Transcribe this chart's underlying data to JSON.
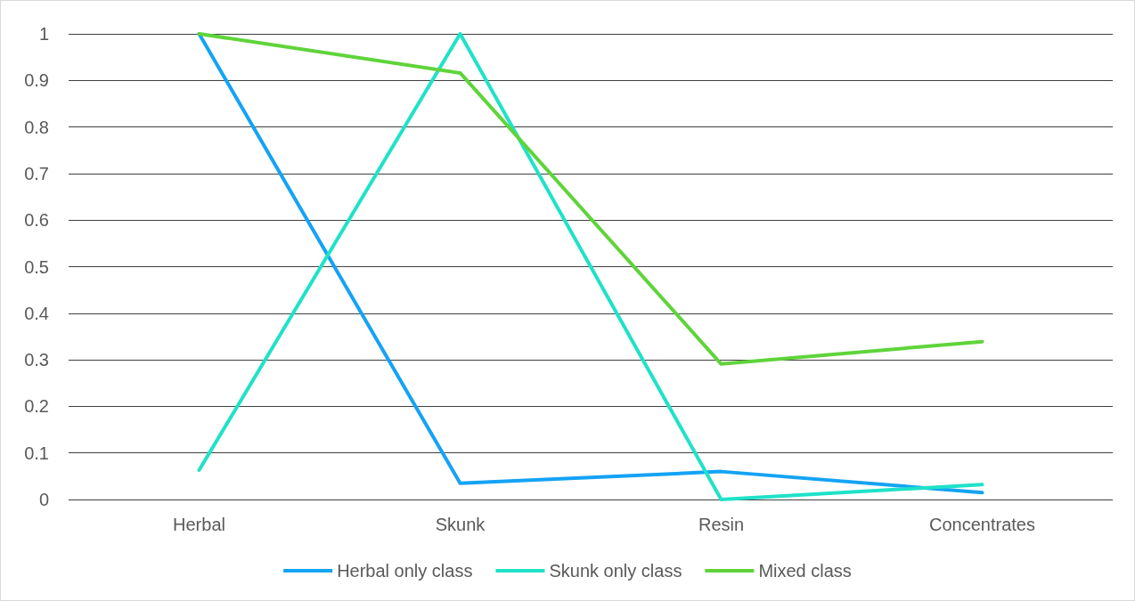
{
  "chart_data": {
    "type": "line",
    "categories": [
      "Herbal",
      "Skunk",
      "Resin",
      "Concentrates"
    ],
    "series": [
      {
        "name": "Herbal only class",
        "color": "#14a3f5",
        "values": [
          1,
          0.035,
          0.06,
          0.015
        ]
      },
      {
        "name": "Skunk only class",
        "color": "#1fe2c8",
        "values": [
          0.063,
          1,
          0,
          0.032
        ]
      },
      {
        "name": "Mixed class",
        "color": "#5fd43a",
        "values": [
          1,
          0.916,
          0.291,
          0.339
        ]
      }
    ],
    "ylim": [
      0,
      1
    ],
    "yticks": [
      0,
      0.1,
      0.2,
      0.3,
      0.4,
      0.5,
      0.6,
      0.7,
      0.8,
      0.9,
      1
    ],
    "grid": "y",
    "legend": "bottom",
    "marker": "none",
    "line_style": "solid"
  }
}
